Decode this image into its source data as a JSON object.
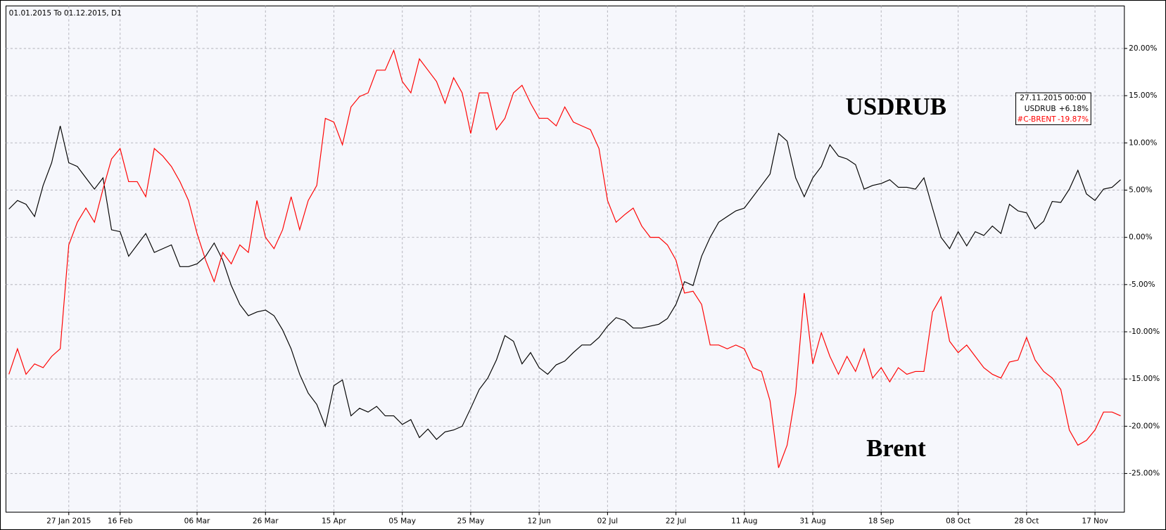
{
  "chart_data": {
    "type": "line",
    "subtitle": "01.01.2015 To 01.12.2015, D1",
    "annotations": [
      "USDRUB",
      "Brent"
    ],
    "tooltip": {
      "date": "27.11.2015 00:00",
      "lines": [
        {
          "name": "USDRUB",
          "value": "+6.18%"
        },
        {
          "name": "#C-BRENT",
          "value": "-19.87%"
        }
      ]
    },
    "categories": [
      null,
      null,
      null,
      null,
      null,
      null,
      null,
      "27 Jan 2015",
      null,
      null,
      null,
      null,
      null,
      "16 Feb",
      null,
      null,
      null,
      null,
      null,
      null,
      null,
      null,
      "06 Mar",
      null,
      null,
      null,
      null,
      null,
      null,
      null,
      "26 Mar",
      null,
      null,
      null,
      null,
      null,
      null,
      null,
      "15 Apr",
      null,
      null,
      null,
      null,
      null,
      null,
      null,
      "05 May",
      null,
      null,
      null,
      null,
      null,
      null,
      null,
      "25 May",
      null,
      null,
      null,
      null,
      null,
      null,
      null,
      "12 Jun",
      null,
      null,
      null,
      null,
      null,
      null,
      null,
      "02 Jul",
      null,
      null,
      null,
      null,
      null,
      null,
      null,
      "22 Jul",
      null,
      null,
      null,
      null,
      null,
      null,
      null,
      "11 Aug",
      null,
      null,
      null,
      null,
      null,
      null,
      null,
      "31 Aug",
      null,
      null,
      null,
      null,
      null,
      null,
      null,
      "18 Sep",
      null,
      null,
      null,
      null,
      null,
      null,
      null,
      null,
      "08 Oct",
      null,
      null,
      null,
      null,
      null,
      null,
      null,
      "28 Oct",
      null,
      null,
      null,
      null,
      null,
      null,
      null,
      "17 Nov",
      null,
      null,
      null
    ],
    "series": [
      {
        "name": "USDRUB",
        "color": "#000000",
        "values": [
          3.0,
          3.9,
          3.5,
          2.2,
          5.5,
          7.9,
          11.8,
          7.9,
          7.5,
          6.3,
          5.1,
          6.3,
          0.8,
          0.6,
          -2.0,
          -0.8,
          0.4,
          -1.6,
          -1.2,
          -0.8,
          -3.1,
          -3.1,
          -2.8,
          -2.0,
          -0.6,
          -2.4,
          -5.1,
          -7.1,
          -8.3,
          -7.9,
          -7.7,
          -8.3,
          -9.8,
          -11.8,
          -14.5,
          -16.5,
          -17.7,
          -20.0,
          -15.7,
          -15.1,
          -18.9,
          -18.1,
          -18.5,
          -17.9,
          -18.9,
          -18.9,
          -19.8,
          -19.3,
          -21.2,
          -20.3,
          -21.4,
          -20.6,
          -20.4,
          -20.0,
          -18.1,
          -16.1,
          -14.9,
          -13.0,
          -10.4,
          -11.0,
          -13.4,
          -12.2,
          -13.8,
          -14.5,
          -13.5,
          -13.1,
          -12.2,
          -11.4,
          -11.4,
          -10.6,
          -9.4,
          -8.5,
          -8.8,
          -9.6,
          -9.6,
          -9.4,
          -9.2,
          -8.6,
          -7.1,
          -4.7,
          -5.1,
          -2.0,
          0.0,
          1.6,
          2.2,
          2.8,
          3.1,
          4.3,
          5.5,
          6.7,
          11.0,
          10.2,
          6.3,
          4.3,
          6.3,
          7.5,
          9.8,
          8.6,
          8.3,
          7.7,
          5.1,
          5.5,
          5.7,
          6.1,
          5.3,
          5.3,
          5.1,
          6.3,
          3.1,
          0.0,
          -1.2,
          0.6,
          -0.9,
          0.6,
          0.2,
          1.2,
          0.4,
          3.5,
          2.8,
          2.6,
          0.9,
          1.7,
          3.8,
          3.7,
          5.1,
          7.1,
          4.6,
          3.9,
          5.1,
          5.3,
          6.1
        ]
      },
      {
        "name": "Brent",
        "color": "#ff0000",
        "values": [
          -14.5,
          -11.8,
          -14.5,
          -13.4,
          -13.8,
          -12.6,
          -11.8,
          -0.8,
          1.6,
          3.1,
          1.6,
          5.1,
          8.3,
          9.4,
          5.9,
          5.9,
          4.3,
          9.4,
          8.6,
          7.5,
          5.9,
          3.9,
          0.4,
          -2.4,
          -4.7,
          -1.6,
          -2.8,
          -0.8,
          -1.6,
          3.9,
          0.0,
          -1.2,
          0.8,
          4.3,
          0.8,
          3.9,
          5.5,
          12.6,
          12.2,
          9.8,
          13.8,
          14.9,
          15.3,
          17.7,
          17.7,
          19.8,
          16.5,
          15.3,
          18.9,
          17.7,
          16.5,
          14.2,
          16.9,
          15.3,
          11.0,
          15.3,
          15.3,
          11.4,
          12.6,
          15.3,
          16.1,
          14.2,
          12.6,
          12.6,
          11.8,
          13.8,
          12.2,
          11.8,
          11.4,
          9.4,
          3.9,
          1.6,
          2.4,
          3.1,
          1.2,
          0.0,
          0.0,
          -0.8,
          -2.4,
          -5.9,
          -5.7,
          -7.1,
          -11.4,
          -11.4,
          -11.8,
          -11.4,
          -11.8,
          -13.8,
          -14.2,
          -17.3,
          -24.4,
          -22.0,
          -16.5,
          -5.9,
          -13.4,
          -10.1,
          -12.6,
          -14.5,
          -12.6,
          -14.2,
          -11.8,
          -14.9,
          -13.8,
          -15.3,
          -13.8,
          -14.5,
          -14.2,
          -14.2,
          -7.9,
          -6.3,
          -11.0,
          -12.2,
          -11.4,
          -12.6,
          -13.8,
          -14.5,
          -14.9,
          -13.2,
          -13.0,
          -10.6,
          -13.0,
          -14.2,
          -14.9,
          -16.1,
          -20.4,
          -22.0,
          -21.5,
          -20.4,
          -18.5,
          -18.5,
          -18.9
        ]
      }
    ],
    "ylim": [
      -29.1,
      24.5
    ],
    "yticks": [
      {
        "value": 20,
        "label": "20.00%"
      },
      {
        "value": 15,
        "label": "15.00%"
      },
      {
        "value": 10,
        "label": "10.00%"
      },
      {
        "value": 5,
        "label": "5.00%"
      },
      {
        "value": 0,
        "label": "0.00%"
      },
      {
        "value": -5,
        "label": "-5.00%"
      },
      {
        "value": -10,
        "label": "-10.00%"
      },
      {
        "value": -15,
        "label": "-15.00%"
      },
      {
        "value": -20,
        "label": "-20.00%"
      },
      {
        "value": -25,
        "label": "-25.00%"
      }
    ],
    "grid": true
  }
}
